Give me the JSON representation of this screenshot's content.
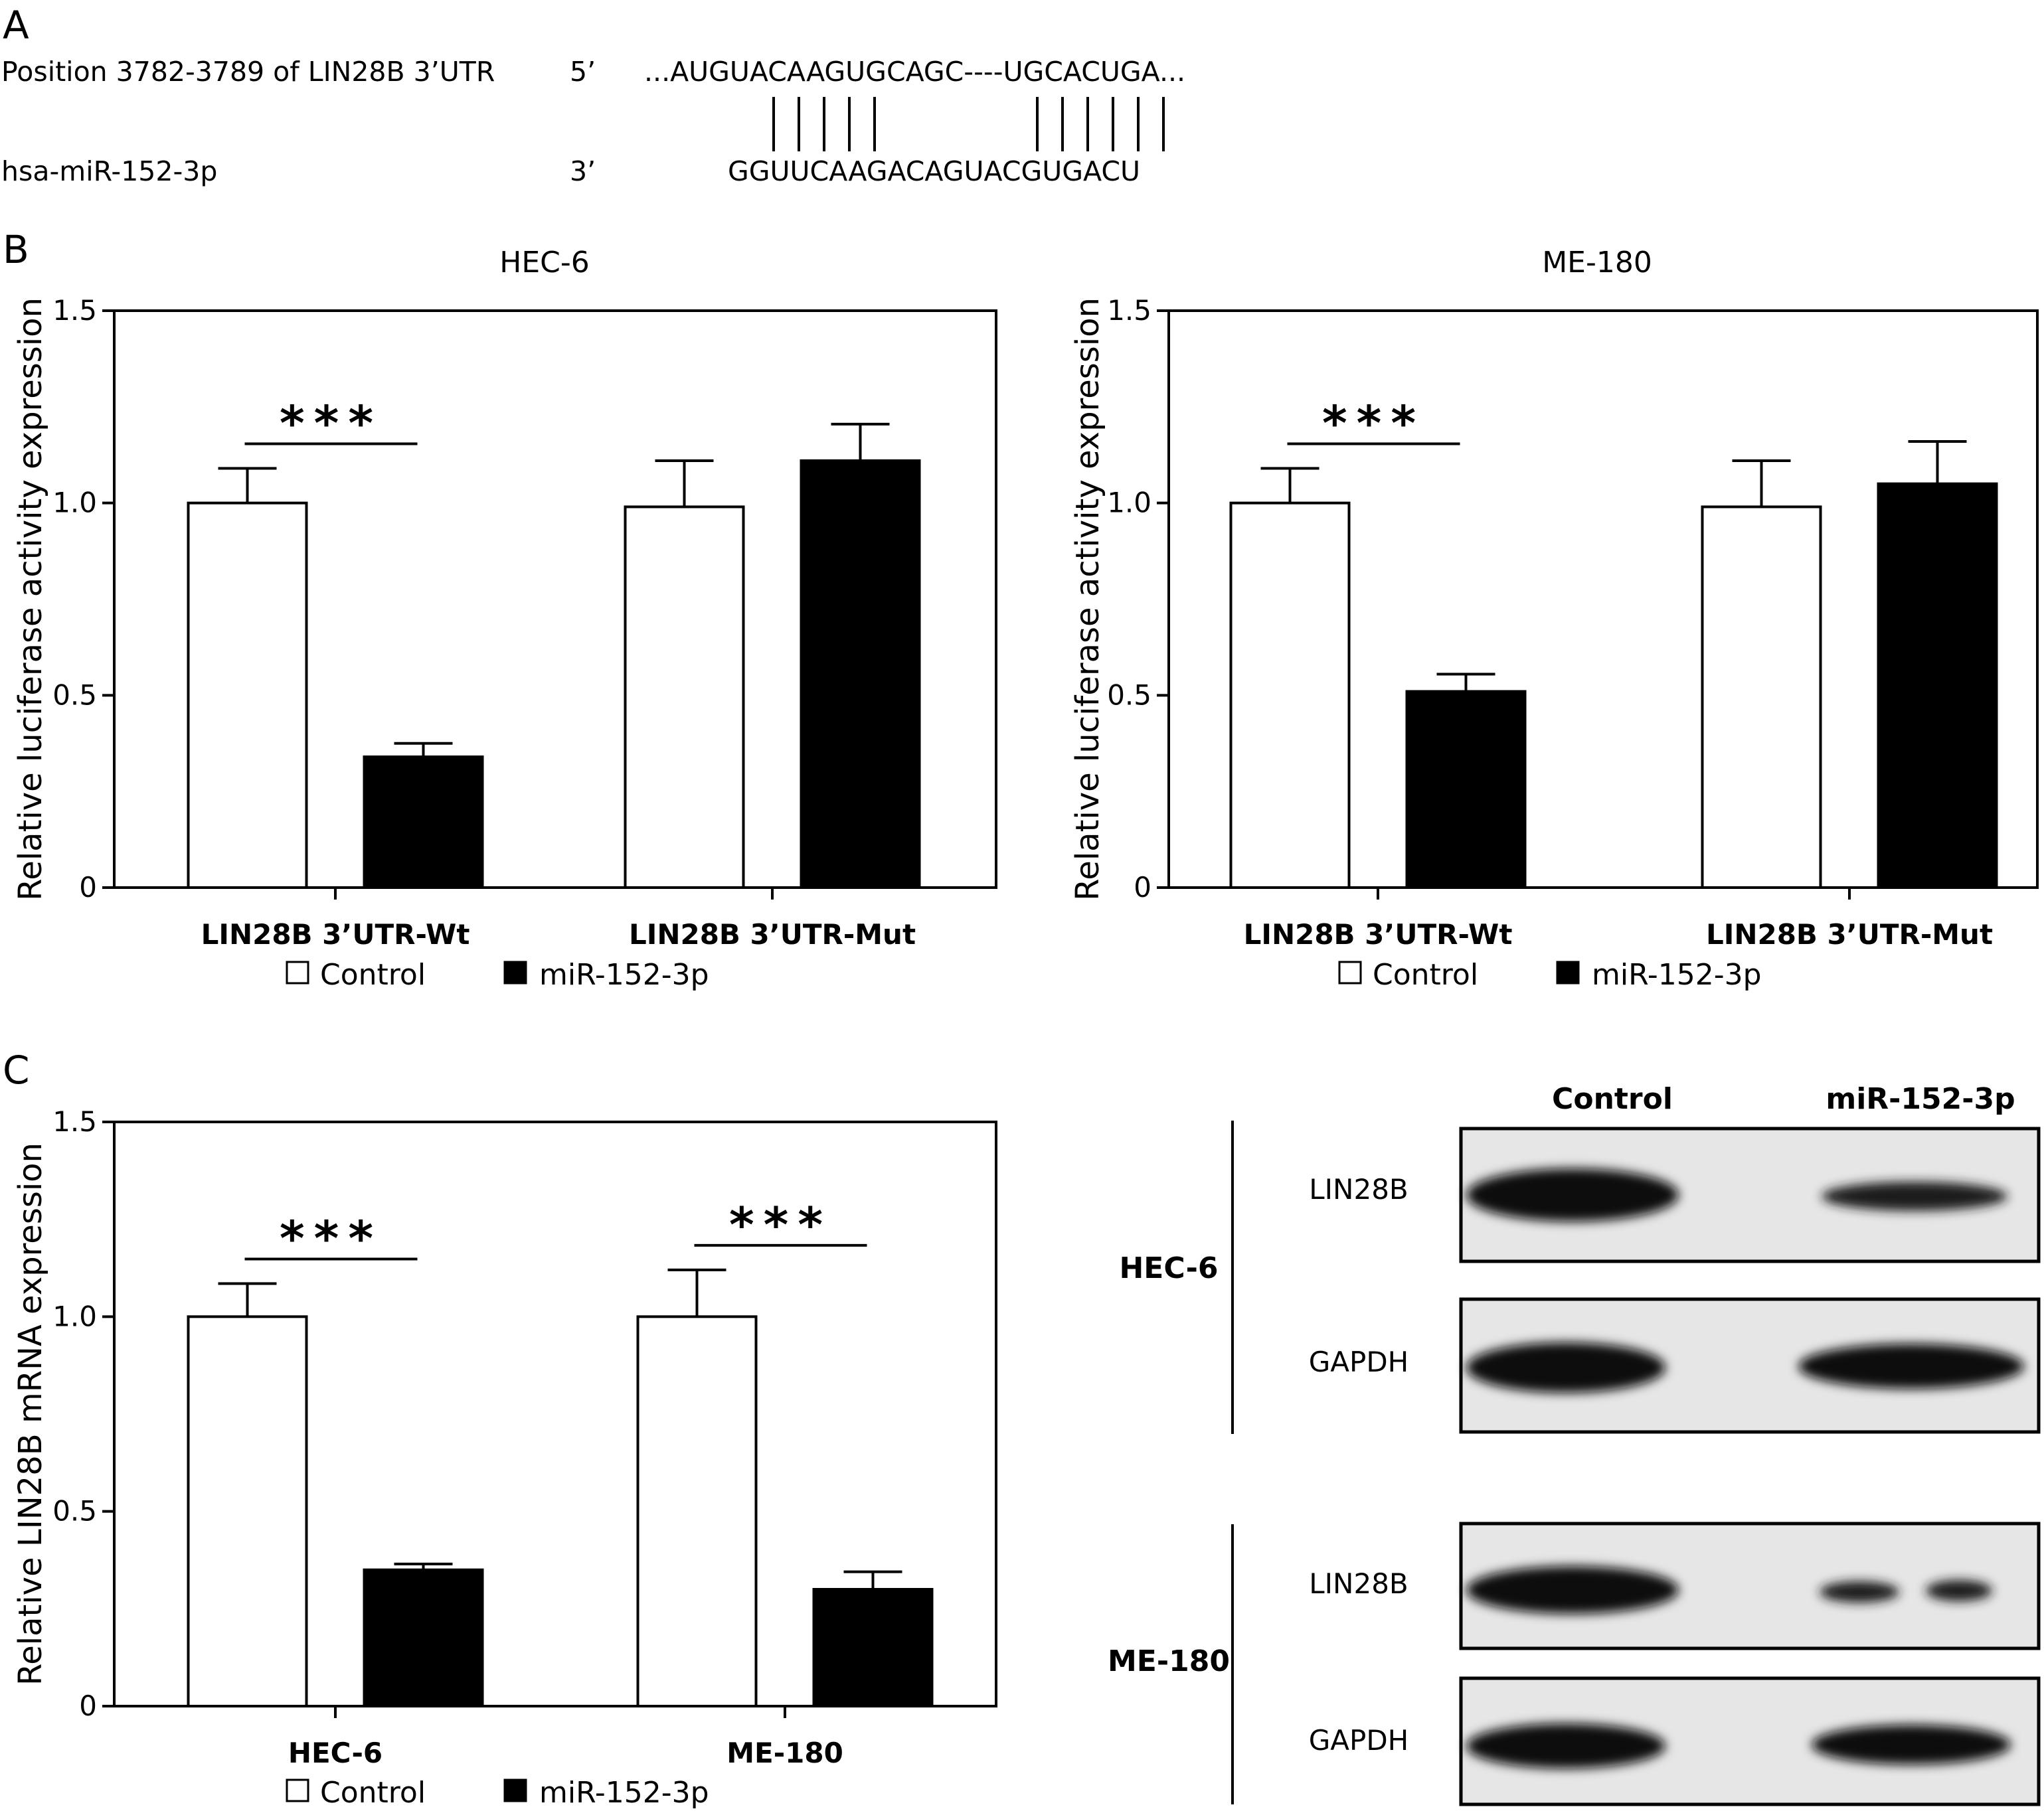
{
  "panels": {
    "A": {
      "letter": "A"
    },
    "B": {
      "letter": "B"
    },
    "C": {
      "letter": "C"
    }
  },
  "sequence": {
    "target_label": "Position 3782-3789 of LIN28B 3’UTR",
    "target_end": "5’",
    "target_seq": "...AUGUACAAGUGCAGC----UGCACUGA...",
    "mirna_label": "hsa-miR-152-3p",
    "mirna_end": "3’",
    "mirna_seq": "GGUUCAAGACAGUACGUGACU"
  },
  "legend": {
    "control": "Control",
    "mir": "miR-152-3p"
  },
  "colors": {
    "control": "#ffffff",
    "mir": "#000000",
    "axis": "#000000"
  },
  "chart_data": [
    {
      "type": "bar",
      "title": "HEC-6",
      "ylabel": "Relative luciferase activity expression",
      "ylim": [
        0,
        1.5
      ],
      "yticks": [
        "0",
        "0.5",
        "1.0",
        "1.5"
      ],
      "categories": [
        "LIN28B 3’UTR-Wt",
        "LIN28B 3’UTR-Mut"
      ],
      "series": [
        {
          "name": "Control",
          "values": [
            1.0,
            0.99
          ],
          "errors": [
            0.09,
            0.12
          ]
        },
        {
          "name": "miR-152-3p",
          "values": [
            0.34,
            1.11
          ],
          "errors": [
            0.035,
            0.095
          ]
        }
      ],
      "significance": [
        {
          "category": 0,
          "label": "***"
        }
      ],
      "legend_position": "bottom"
    },
    {
      "type": "bar",
      "title": "ME-180",
      "ylabel": "Relative luciferase activity expression",
      "ylim": [
        0,
        1.5
      ],
      "yticks": [
        "0",
        "0.5",
        "1.0",
        "1.5"
      ],
      "categories": [
        "LIN28B 3’UTR-Wt",
        "LIN28B 3’UTR-Mut"
      ],
      "series": [
        {
          "name": "Control",
          "values": [
            1.0,
            0.99
          ],
          "errors": [
            0.09,
            0.12
          ]
        },
        {
          "name": "miR-152-3p",
          "values": [
            0.51,
            1.05
          ],
          "errors": [
            0.045,
            0.11
          ]
        }
      ],
      "significance": [
        {
          "category": 0,
          "label": "***"
        }
      ],
      "legend_position": "bottom"
    },
    {
      "type": "bar",
      "title": "",
      "ylabel": "Relative LIN28B mRNA expression",
      "ylim": [
        0,
        1.5
      ],
      "yticks": [
        "0",
        "0.5",
        "1.0",
        "1.5"
      ],
      "categories": [
        "HEC-6",
        "ME-180"
      ],
      "series": [
        {
          "name": "Control",
          "values": [
            1.0,
            1.0
          ],
          "errors": [
            0.085,
            0.12
          ]
        },
        {
          "name": "miR-152-3p",
          "values": [
            0.35,
            0.3
          ],
          "errors": [
            0.015,
            0.045
          ]
        }
      ],
      "significance": [
        {
          "category": 0,
          "label": "***"
        },
        {
          "category": 1,
          "label": "***"
        }
      ],
      "legend_position": "bottom"
    }
  ],
  "blot": {
    "headers": [
      "Control",
      "miR-152-3p"
    ],
    "groups": [
      {
        "cell_line": "HEC-6",
        "rows": [
          "LIN28B",
          "GAPDH"
        ]
      },
      {
        "cell_line": "ME-180",
        "rows": [
          "LIN28B",
          "GAPDH"
        ]
      }
    ]
  }
}
